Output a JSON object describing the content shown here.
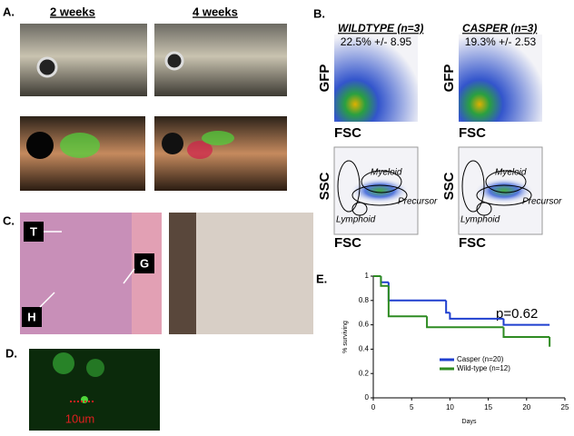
{
  "panel_a": {
    "label": "A.",
    "col1": "2 weeks",
    "col2": "4 weeks"
  },
  "panel_b": {
    "label": "B.",
    "left": {
      "title": "WILDTYPE (n=3)",
      "stat": "22.5% +/- 8.95",
      "top_y": "GFP",
      "top_x": "FSC",
      "bottom_y": "SSC",
      "bottom_x": "FSC",
      "gate1": "Myeloid",
      "gate2": "Precursor",
      "gate3": "Lymphoid"
    },
    "right": {
      "title": "CASPER (n=3)",
      "stat": "19.3% +/- 2.53",
      "top_y": "GFP",
      "top_x": "FSC",
      "bottom_y": "SSC",
      "bottom_x": "FSC",
      "gate1": "Myeloid",
      "gate2": "Precursor",
      "gate3": "Lymphoid"
    }
  },
  "panel_c": {
    "label": "C.",
    "t": "T",
    "g": "G",
    "h": "H"
  },
  "panel_d": {
    "label": "D.",
    "scale": "10um"
  },
  "panel_e": {
    "label": "E."
  },
  "chart_data": {
    "type": "line",
    "xlabel": "Days",
    "ylabel": "% surviving",
    "annotation": "p=0.62",
    "xlim": [
      0,
      25
    ],
    "xticks": [
      0,
      5,
      10,
      15,
      20,
      25
    ],
    "ylim": [
      0,
      1
    ],
    "yticks": [
      0,
      0.2,
      0.4,
      0.6,
      0.8,
      1
    ],
    "series": [
      {
        "name": "Casper (n=20)",
        "color": "#1f3fcf",
        "x": [
          0,
          1,
          2,
          9.5,
          10,
          17,
          23
        ],
        "values": [
          1,
          0.95,
          0.8,
          0.7,
          0.65,
          0.6,
          0.6
        ]
      },
      {
        "name": "Wild-type (n=12)",
        "color": "#2e8b22",
        "x": [
          0,
          1,
          2,
          7,
          17,
          23,
          23
        ],
        "values": [
          1,
          0.92,
          0.67,
          0.58,
          0.5,
          0.5,
          0.42
        ]
      }
    ]
  }
}
